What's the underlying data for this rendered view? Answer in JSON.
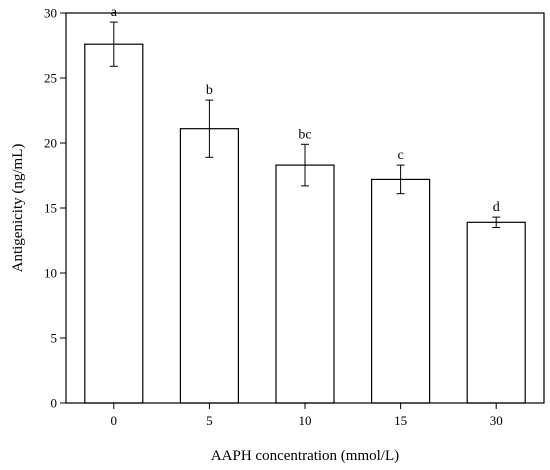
{
  "chart_data": {
    "type": "bar",
    "categories": [
      "0",
      "5",
      "10",
      "15",
      "30"
    ],
    "values": [
      27.6,
      21.1,
      18.3,
      17.2,
      13.9
    ],
    "errors": [
      1.7,
      2.2,
      1.6,
      1.1,
      0.4
    ],
    "significance": [
      "a",
      "b",
      "bc",
      "c",
      "d"
    ],
    "xlabel": "AAPH concentration (mmol/L)",
    "ylabel": "Antigenicity (ng/mL)",
    "ylim": [
      0,
      30
    ],
    "yticks": [
      "0",
      "5",
      "10",
      "15",
      "20",
      "25",
      "30"
    ],
    "grid": false,
    "bar_fill": "#ffffff",
    "bar_stroke": "#000000"
  }
}
